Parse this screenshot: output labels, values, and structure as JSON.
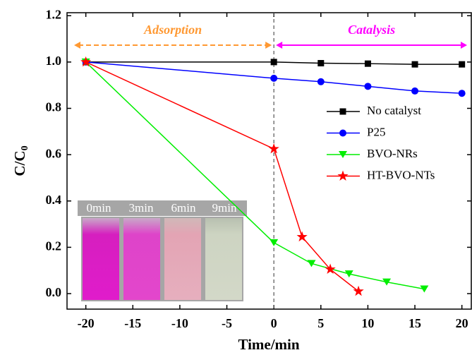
{
  "chart_data": {
    "type": "line",
    "x_label": "Time/min",
    "y_label": "C/C0",
    "xlim": [
      -22,
      21
    ],
    "ylim": [
      -0.067,
      1.213
    ],
    "xticks": [
      -20,
      -15,
      -10,
      -5,
      0,
      5,
      10,
      15,
      20
    ],
    "yticks": [
      {
        "value": 0,
        "label": "0.0"
      },
      0.2,
      0.4,
      0.6,
      0.8,
      {
        "value": 1,
        "label": "1.0"
      },
      1.2
    ],
    "series": [
      {
        "name": "No catalyst",
        "color": "#000000",
        "marker": "square",
        "x": [
          -20,
          0,
          5,
          10,
          15,
          20
        ],
        "values": [
          1.0,
          1.0,
          0.995,
          0.993,
          0.99,
          0.99
        ]
      },
      {
        "name": "P25",
        "color": "#0000ff",
        "marker": "circle",
        "x": [
          -20,
          0,
          5,
          10,
          15,
          20
        ],
        "values": [
          1.0,
          0.93,
          0.915,
          0.895,
          0.875,
          0.865
        ]
      },
      {
        "name": "BVO-NRs",
        "color": "#00ee00",
        "marker": "triangle",
        "x": [
          -20,
          0,
          4,
          8,
          12,
          16
        ],
        "values": [
          1.0,
          0.22,
          0.13,
          0.085,
          0.05,
          0.02
        ]
      },
      {
        "name": "HT-BVO-NTs",
        "color": "#ff0000",
        "marker": "star",
        "x": [
          -20,
          0,
          3,
          6,
          9
        ],
        "values": [
          1.0,
          0.625,
          0.245,
          0.105,
          0.01
        ]
      }
    ],
    "annotations": [
      {
        "text": "Adsorption",
        "color": "#ff9933"
      },
      {
        "text": "Catalysis",
        "color": "#ff00ff"
      }
    ],
    "inset_labels": [
      "0min",
      "3min",
      "6min",
      "9min"
    ]
  }
}
